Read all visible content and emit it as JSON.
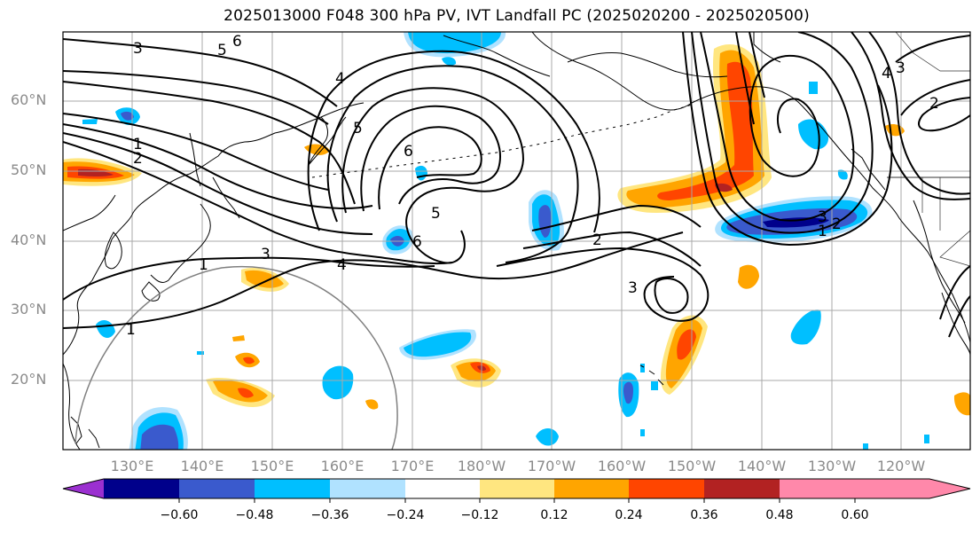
{
  "title": "2025013000 F048 300 hPa PV, IVT Landfall PC (2025020200 - 2025020500)",
  "lat_labels": [
    "60°N",
    "50°N",
    "40°N",
    "30°N",
    "20°N"
  ],
  "lon_labels": [
    "130°E",
    "140°E",
    "150°E",
    "160°E",
    "170°E",
    "180°W",
    "170°W",
    "160°W",
    "150°W",
    "140°W",
    "130°W",
    "120°W"
  ],
  "colorbar": {
    "ticks": [
      "−0.60",
      "−0.48",
      "−0.36",
      "−0.24",
      "−0.12",
      "0.12",
      "0.24",
      "0.36",
      "0.48",
      "0.60"
    ],
    "colors": [
      "#9b30d0",
      "#00008b",
      "#3a5acd",
      "#00bfff",
      "#b0e2ff",
      "#ffffff",
      "#ffe680",
      "#ffa500",
      "#ff4500",
      "#b22222",
      "#ff88aa"
    ]
  },
  "contour_labels": {
    "c1": "1",
    "c2": "2",
    "c3": "3",
    "c4": "4",
    "c5": "5",
    "c6": "6"
  }
}
